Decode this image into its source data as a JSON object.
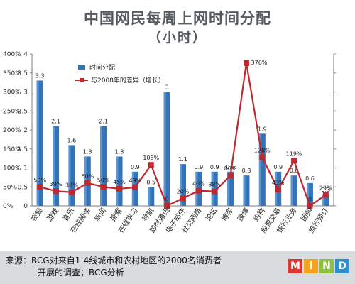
{
  "title_line1": "中国网民每周上网时间分配",
  "title_line2": "（小时）",
  "chart_data": {
    "type": "bar",
    "categories": [
      "视频",
      "游戏",
      "音乐",
      "在线阅读",
      "新闻",
      "搜索",
      "在线学习",
      "导航",
      "即时通讯",
      "电子邮件",
      "社交网络",
      "论坛",
      "博客",
      "微博",
      "购物",
      "股票交易",
      "银行业务",
      "团购",
      "旅行预订"
    ],
    "series": [
      {
        "name": "时间分配",
        "type": "bar",
        "axis": "left",
        "values": [
          3.3,
          2.1,
          1.6,
          1.3,
          2.1,
          1.3,
          0.9,
          0.5,
          3,
          1.1,
          0.9,
          0.9,
          0.9,
          0.8,
          1.9,
          0.9,
          0.8,
          0.6,
          0.3
        ],
        "labels": [
          "3.3",
          "2.1",
          "1.6",
          "1.3",
          "2.1",
          "1.3",
          "0.9",
          "0.5",
          "3",
          "1.1",
          "0.9",
          "0.9",
          "0.9",
          "0.8",
          "1.9",
          "0.9",
          "0.8",
          "0.6",
          "0.3"
        ],
        "color": "#3573b8"
      },
      {
        "name": "与2008年的差异（增长）",
        "type": "line",
        "axis": "right",
        "values": [
          50,
          39,
          36,
          60,
          50,
          45,
          49,
          108,
          0,
          20,
          40,
          38,
          80,
          376,
          128,
          43,
          119,
          0,
          29
        ],
        "labels": [
          "50%",
          "39%",
          "36%",
          "60%",
          "50%",
          "45%",
          "49%",
          "108%",
          "0",
          "20%",
          "40%",
          "38%",
          "80%",
          "376%",
          "128%",
          "43%",
          "119%",
          "0",
          "29%"
        ],
        "color": "#c0282f"
      }
    ],
    "left_axis": {
      "min": 0,
      "max": 4,
      "ticks": [
        "0",
        "0.5",
        "1",
        "1.5",
        "2",
        "2.5",
        "3",
        "3.5",
        "4"
      ]
    },
    "right_axis": {
      "min": 0,
      "max": 400,
      "ticks": [
        "0%",
        "50%",
        "100%",
        "150%",
        "200%",
        "250%",
        "300%",
        "350%",
        "400%"
      ]
    },
    "legend_position": "top-left",
    "grid": false
  },
  "footer": {
    "source_line1": "来源：BCG对来自1-4线城市和农村地区的2000名消费者",
    "source_line2": "开展的调查；BCG分析"
  },
  "logo": {
    "letters": [
      "M",
      "i",
      "N",
      "D"
    ],
    "colors": [
      "#e2332c",
      "#f6a21b",
      "#8dc23f",
      "#2b8fd0"
    ]
  }
}
